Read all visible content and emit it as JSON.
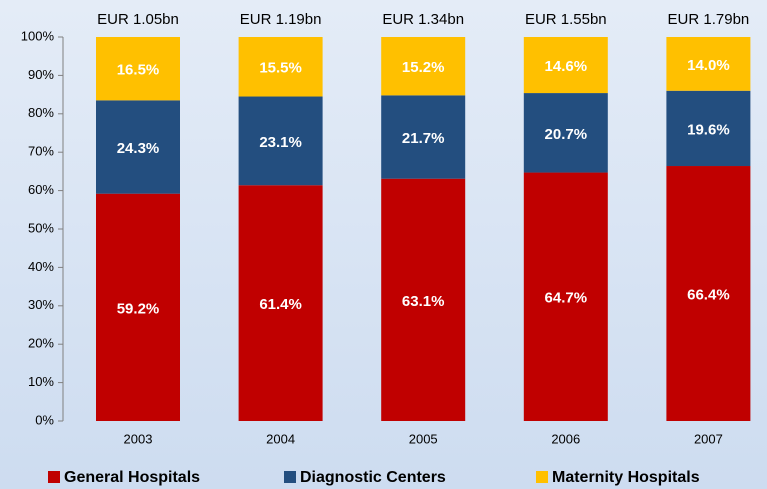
{
  "chart_data": {
    "type": "stacked_bar",
    "categories": [
      "2003",
      "2004",
      "2005",
      "2006",
      "2007"
    ],
    "annotations": [
      "EUR 1.05bn",
      "EUR 1.19bn",
      "EUR 1.34bn",
      "EUR 1.55bn",
      "EUR 1.79bn"
    ],
    "series": [
      {
        "name": "General Hospitals",
        "color": "#c00000",
        "values": [
          59.2,
          61.4,
          63.1,
          64.7,
          66.4
        ],
        "value_labels": [
          "59.2%",
          "61.4%",
          "63.1%",
          "64.7%",
          "66.4%"
        ]
      },
      {
        "name": "Diagnostic Centers",
        "color": "#234e7f",
        "values": [
          24.3,
          23.1,
          21.7,
          20.7,
          19.6
        ],
        "value_labels": [
          "24.3%",
          "23.1%",
          "21.7%",
          "20.7%",
          "19.6%"
        ]
      },
      {
        "name": "Maternity Hospitals",
        "color": "#ffc000",
        "values": [
          16.5,
          15.5,
          15.2,
          14.6,
          14.0
        ],
        "value_labels": [
          "16.5%",
          "15.5%",
          "15.2%",
          "14.6%",
          "14.0%"
        ]
      }
    ],
    "ylim": [
      0,
      100
    ],
    "yticks": [
      {
        "value": 0,
        "label": "0%"
      },
      {
        "value": 10,
        "label": "10%"
      },
      {
        "value": 20,
        "label": "20%"
      },
      {
        "value": 30,
        "label": "30%"
      },
      {
        "value": 40,
        "label": "40%"
      },
      {
        "value": 50,
        "label": "50%"
      },
      {
        "value": 60,
        "label": "60%"
      },
      {
        "value": 70,
        "label": "70%"
      },
      {
        "value": 80,
        "label": "80%"
      },
      {
        "value": 90,
        "label": "90%"
      },
      {
        "value": 100,
        "label": "100%"
      }
    ],
    "grid": false,
    "legend": "bottom"
  }
}
